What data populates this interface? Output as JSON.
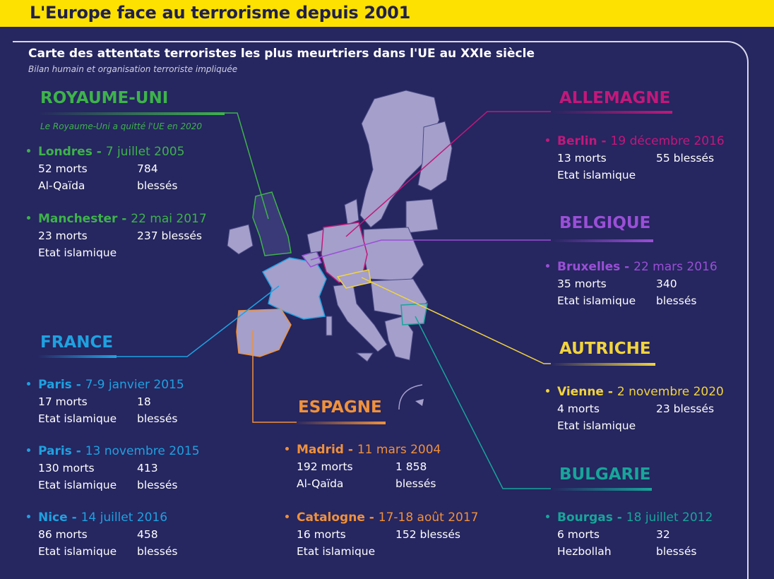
{
  "header": {
    "title": "L'Europe face au terrorisme depuis 2001"
  },
  "subtitle": "Carte des attentats terroristes les plus meurtriers dans l'UE au XXIe siècle",
  "caption": "Bilan humain et organisation terroriste impliquée",
  "colors": {
    "uk": "#3db34a",
    "de": "#c2187a",
    "be": "#9a4fd6",
    "fr": "#1fa1e0",
    "es": "#f0913a",
    "at": "#f2d43c",
    "bg": "#17a69a"
  },
  "uk": {
    "name": "ROYAUME-UNI",
    "note": "Le Royaume-Uni a quitté l'UE en 2020",
    "events": [
      {
        "city": "Londres - ",
        "date": "7 juillet 2005",
        "deaths": "52 morts",
        "injured": "784 blessés",
        "group": "Al-Qaïda"
      },
      {
        "city": "Manchester - ",
        "date": "22 mai 2017",
        "deaths": "23 morts",
        "injured": "237 blessés",
        "group": "Etat islamique"
      }
    ]
  },
  "de": {
    "name": "ALLEMAGNE",
    "events": [
      {
        "city": "Berlin - ",
        "date": "19 décembre 2016",
        "deaths": "13 morts",
        "injured": "55 blessés",
        "group": "Etat islamique"
      }
    ]
  },
  "be": {
    "name": "BELGIQUE",
    "events": [
      {
        "city": "Bruxelles - ",
        "date": "22 mars 2016",
        "deaths": "35 morts",
        "injured": "340 blessés",
        "group": "Etat islamique"
      }
    ]
  },
  "fr": {
    "name": "FRANCE",
    "events": [
      {
        "city": "Paris - ",
        "date": "7-9 janvier 2015",
        "deaths": "17 morts",
        "injured": "18 blessés",
        "group": "Etat islamique"
      },
      {
        "city": "Paris - ",
        "date": "13 novembre 2015",
        "deaths": "130 morts",
        "injured": "413 blessés",
        "group": "Etat islamique"
      },
      {
        "city": "Nice - ",
        "date": "14 juillet 2016",
        "deaths": "86 morts",
        "injured": "458 blessés",
        "group": "Etat islamique"
      }
    ]
  },
  "es": {
    "name": "ESPAGNE",
    "events": [
      {
        "city": "Madrid - ",
        "date": "11 mars 2004",
        "deaths": "192 morts",
        "injured": "1 858 blessés",
        "group": "Al-Qaïda"
      },
      {
        "city": "Catalogne - ",
        "date": "17-18 août 2017",
        "deaths": "16 morts",
        "injured": "152 blessés",
        "group": "Etat islamique"
      }
    ]
  },
  "at": {
    "name": "AUTRICHE",
    "events": [
      {
        "city": "Vienne - ",
        "date": "2 novembre 2020",
        "deaths": "4 morts",
        "injured": "23 blessés",
        "group": "Etat islamique"
      }
    ]
  },
  "bg": {
    "name": "BULGARIE",
    "events": [
      {
        "city": "Bourgas - ",
        "date": "18 juillet 2012",
        "deaths": "6 morts",
        "injured": "32 blessés",
        "group": "Hezbollah"
      }
    ]
  }
}
